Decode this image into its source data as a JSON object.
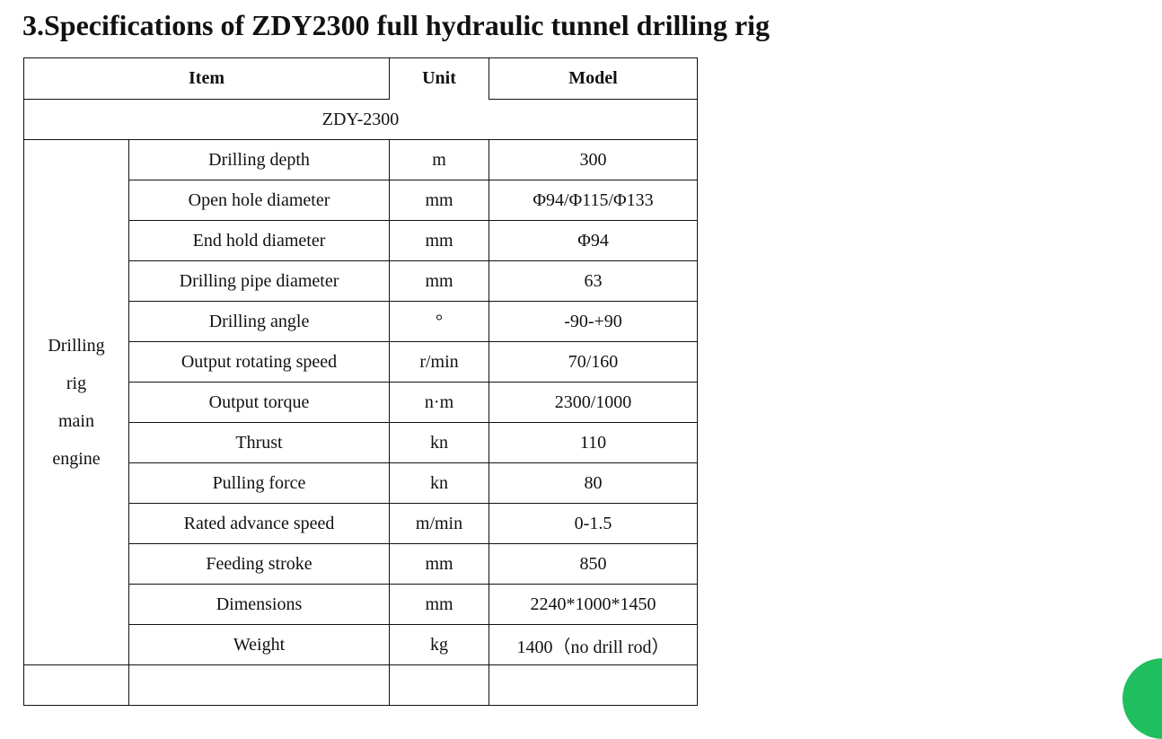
{
  "title": "3.Specifications of ZDY2300 full hydraulic tunnel drilling rig",
  "table": {
    "header": {
      "item": "Item",
      "unit": "Unit",
      "model": "Model"
    },
    "model_name": "ZDY-2300",
    "group": [
      "Drilling",
      "rig",
      "main",
      "engine"
    ],
    "rows": [
      [
        "Drilling depth",
        "m",
        "300"
      ],
      [
        "Open hole diameter",
        "mm",
        "Φ94/Φ115/Φ133"
      ],
      [
        "End hold diameter",
        "mm",
        "Φ94"
      ],
      [
        "Drilling pipe diameter",
        "mm",
        "63"
      ],
      [
        "Drilling angle",
        "°",
        "-90-+90"
      ],
      [
        "Output rotating speed",
        "r/min",
        "70/160"
      ],
      [
        "Output torque",
        "n·m",
        "2300/1000"
      ],
      [
        "Thrust",
        "kn",
        "110"
      ],
      [
        "Pulling force",
        "kn",
        "80"
      ],
      [
        "Rated advance speed",
        "m/min",
        "0-1.5"
      ],
      [
        "Feeding stroke",
        "mm",
        "850"
      ],
      [
        "Dimensions",
        "mm",
        "2240*1000*1450"
      ],
      [
        "Weight",
        "kg",
        "1400（no drill rod）"
      ]
    ]
  }
}
